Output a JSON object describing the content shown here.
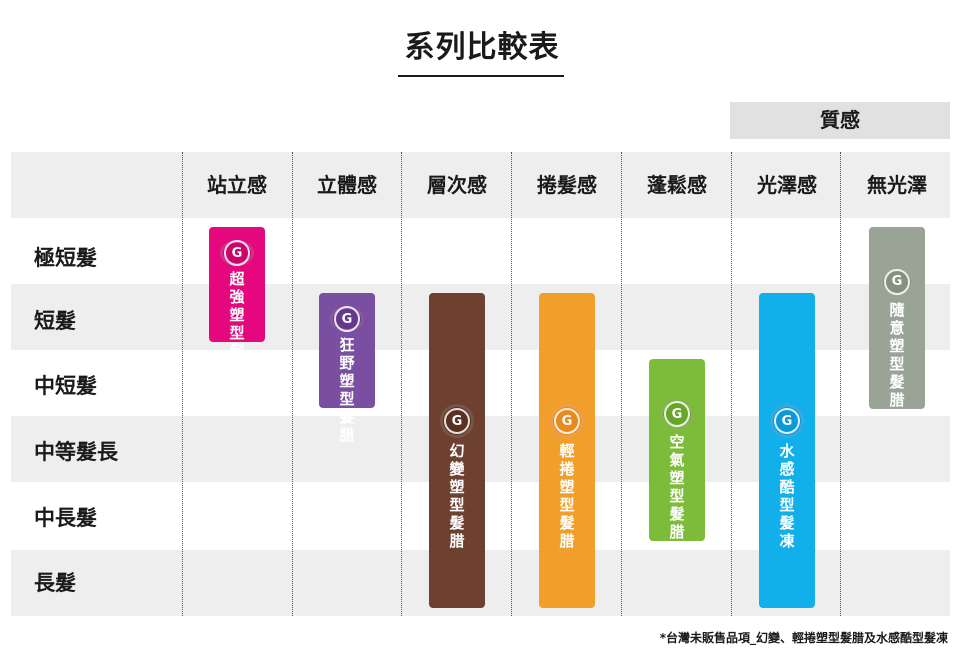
{
  "title": "系列比較表",
  "quality_group_label": "質感",
  "columns": [
    "站立感",
    "立體感",
    "層次感",
    "捲髮感",
    "蓬鬆感",
    "光澤感",
    "無光澤"
  ],
  "rows": [
    "極短髮",
    "短髮",
    "中短髮",
    "中等髮長",
    "中長髮",
    "長髮"
  ],
  "products": [
    {
      "name": "超強塑型髮腊",
      "color": "#e4077e",
      "badge_color": "#c8066c",
      "column": "站立感",
      "rows": [
        "極短髮",
        "短髮"
      ]
    },
    {
      "name": "狂野塑型髮腊",
      "color": "#7a4ea0",
      "badge_color": "#64398a",
      "column": "立體感",
      "rows": [
        "短髮",
        "中短髮"
      ]
    },
    {
      "name": "幻變塑型髮腊",
      "color": "#6e4030",
      "badge_color": "#5a3020",
      "column": "層次感",
      "rows": [
        "短髮",
        "中短髮",
        "中等髮長",
        "中長髮",
        "長髮"
      ]
    },
    {
      "name": "輕捲塑型髮腊",
      "color": "#f0a02a",
      "badge_color": "#e88a1e",
      "column": "捲髮感",
      "rows": [
        "短髮",
        "中短髮",
        "中等髮長",
        "中長髮",
        "長髮"
      ]
    },
    {
      "name": "空氣塑型髮腊",
      "color": "#7dbb3a",
      "badge_color": "#68a52a",
      "column": "蓬鬆感",
      "rows": [
        "中短髮",
        "中等髮長",
        "中長髮"
      ]
    },
    {
      "name": "水感酷型髮凍",
      "color": "#11b0ea",
      "badge_color": "#0a98d6",
      "column": "光澤感",
      "rows": [
        "短髮",
        "中短髮",
        "中等髮長",
        "中長髮",
        "長髮"
      ]
    },
    {
      "name": "隨意塑型髮腊",
      "color": "#99a396",
      "badge_color": "#86907f",
      "column": "無光澤",
      "rows": [
        "極短髮",
        "短髮",
        "中短髮"
      ]
    }
  ],
  "badge_glyph": "G",
  "footnote": "*台灣未販售品項_幻變、輕捲塑型髮腊及水感酷型髮凍"
}
